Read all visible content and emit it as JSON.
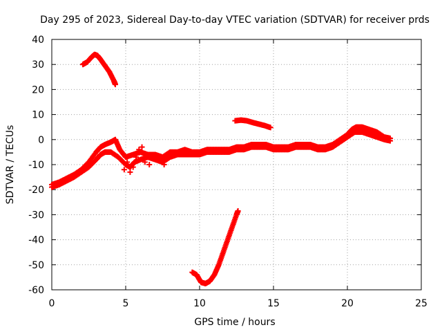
{
  "chart_data": {
    "type": "scatter",
    "title": "Day 295 of 2023, Sidereal Day-to-day VTEC variation (SDTVAR) for receiver prds",
    "xlabel": "GPS time / hours",
    "ylabel": "SDTVAR / TECUs",
    "xlim": [
      0,
      25
    ],
    "ylim": [
      -60,
      40
    ],
    "x_ticks": [
      0,
      5,
      10,
      15,
      20,
      25
    ],
    "y_ticks": [
      -60,
      -50,
      -40,
      -30,
      -20,
      -10,
      0,
      10,
      20,
      30,
      40
    ],
    "grid": true,
    "marker": "+",
    "color": "#ff0000",
    "series": [
      {
        "name": "main-band-upper",
        "x": [
          0.0,
          0.5,
          1.0,
          1.5,
          2.0,
          2.5,
          3.0,
          3.3,
          3.6,
          4.0,
          4.3,
          4.6,
          5.0,
          5.5,
          6.0,
          6.5,
          7.0,
          7.5,
          8.0,
          8.5,
          9.0,
          9.5,
          10.0,
          10.5,
          11.0,
          11.5,
          12.0,
          12.5,
          13.0,
          13.5,
          14.0,
          14.5,
          15.0,
          15.5,
          16.0,
          16.5,
          17.0,
          17.5,
          18.0,
          18.5,
          19.0,
          19.5,
          20.0,
          20.3,
          20.6,
          21.0,
          21.5,
          22.0,
          22.5,
          22.9
        ],
        "y": [
          -18,
          -17,
          -15.5,
          -14,
          -12,
          -9,
          -5,
          -3,
          -2,
          -1,
          0,
          -4,
          -7,
          -6,
          -5,
          -6,
          -6,
          -7,
          -5,
          -5,
          -4,
          -5,
          -5,
          -4,
          -4,
          -4,
          -4,
          -3,
          -3,
          -2,
          -2,
          -2,
          -3,
          -3,
          -3,
          -2,
          -2,
          -2,
          -3,
          -3,
          -2,
          0,
          2,
          4,
          5,
          5,
          4,
          3,
          1,
          0.5
        ]
      },
      {
        "name": "main-band-lower",
        "x": [
          0.0,
          0.5,
          1.0,
          1.5,
          2.0,
          2.5,
          3.0,
          3.3,
          3.6,
          4.0,
          4.5,
          5.0,
          5.3,
          5.6,
          6.0,
          6.5,
          7.0,
          7.5,
          8.0,
          8.5,
          9.0,
          9.5,
          10.0,
          10.5,
          11.0,
          11.5,
          12.0,
          12.5,
          13.0,
          13.5,
          14.0,
          14.5,
          15.0,
          15.5,
          16.0,
          16.5,
          17.0,
          17.5,
          18.0,
          18.5,
          19.0,
          19.5,
          20.0,
          20.5,
          21.0,
          21.5,
          22.0,
          22.5,
          22.9
        ],
        "y": [
          -19,
          -18,
          -16.5,
          -15,
          -13,
          -11,
          -8,
          -6,
          -5,
          -5,
          -7,
          -10,
          -11,
          -9,
          -8,
          -7,
          -8,
          -9,
          -7,
          -6,
          -6,
          -6,
          -6,
          -5,
          -5,
          -5,
          -5,
          -4,
          -4,
          -3,
          -3,
          -3,
          -4,
          -4,
          -4,
          -3,
          -3,
          -3,
          -4,
          -4,
          -3,
          -1,
          1,
          3,
          3,
          2,
          1,
          0,
          -0.5
        ]
      },
      {
        "name": "high-arc",
        "x": [
          2.1,
          2.4,
          2.7,
          2.9,
          3.1,
          3.3,
          3.6,
          3.9,
          4.2,
          4.3
        ],
        "y": [
          30,
          31,
          33,
          34,
          33.5,
          32,
          29.5,
          27,
          23.5,
          22
        ]
      },
      {
        "name": "mid-segment",
        "x": [
          12.4,
          12.8,
          13.2,
          13.6,
          14.0,
          14.4,
          14.8
        ],
        "y": [
          7.5,
          7.8,
          7.5,
          6.8,
          6.2,
          5.6,
          4.8
        ]
      },
      {
        "name": "low-dip",
        "x": [
          9.5,
          9.8,
          10.1,
          10.4,
          10.7,
          11.0,
          11.3,
          11.6,
          11.9,
          12.2,
          12.5,
          12.6
        ],
        "y": [
          -53,
          -54,
          -57,
          -57.5,
          -56.5,
          -54,
          -50,
          -45,
          -40,
          -35,
          -30,
          -28.5
        ]
      },
      {
        "name": "scatter-points",
        "x": [
          4.9,
          5.1,
          5.3,
          5.5,
          5.7,
          5.9,
          6.1,
          6.3,
          6.6,
          6.9,
          7.2,
          7.6,
          8.0
        ],
        "y": [
          -12,
          -9,
          -13,
          -11,
          -7,
          -4,
          -3,
          -9,
          -10,
          -7,
          -8,
          -10,
          -6
        ]
      }
    ]
  }
}
